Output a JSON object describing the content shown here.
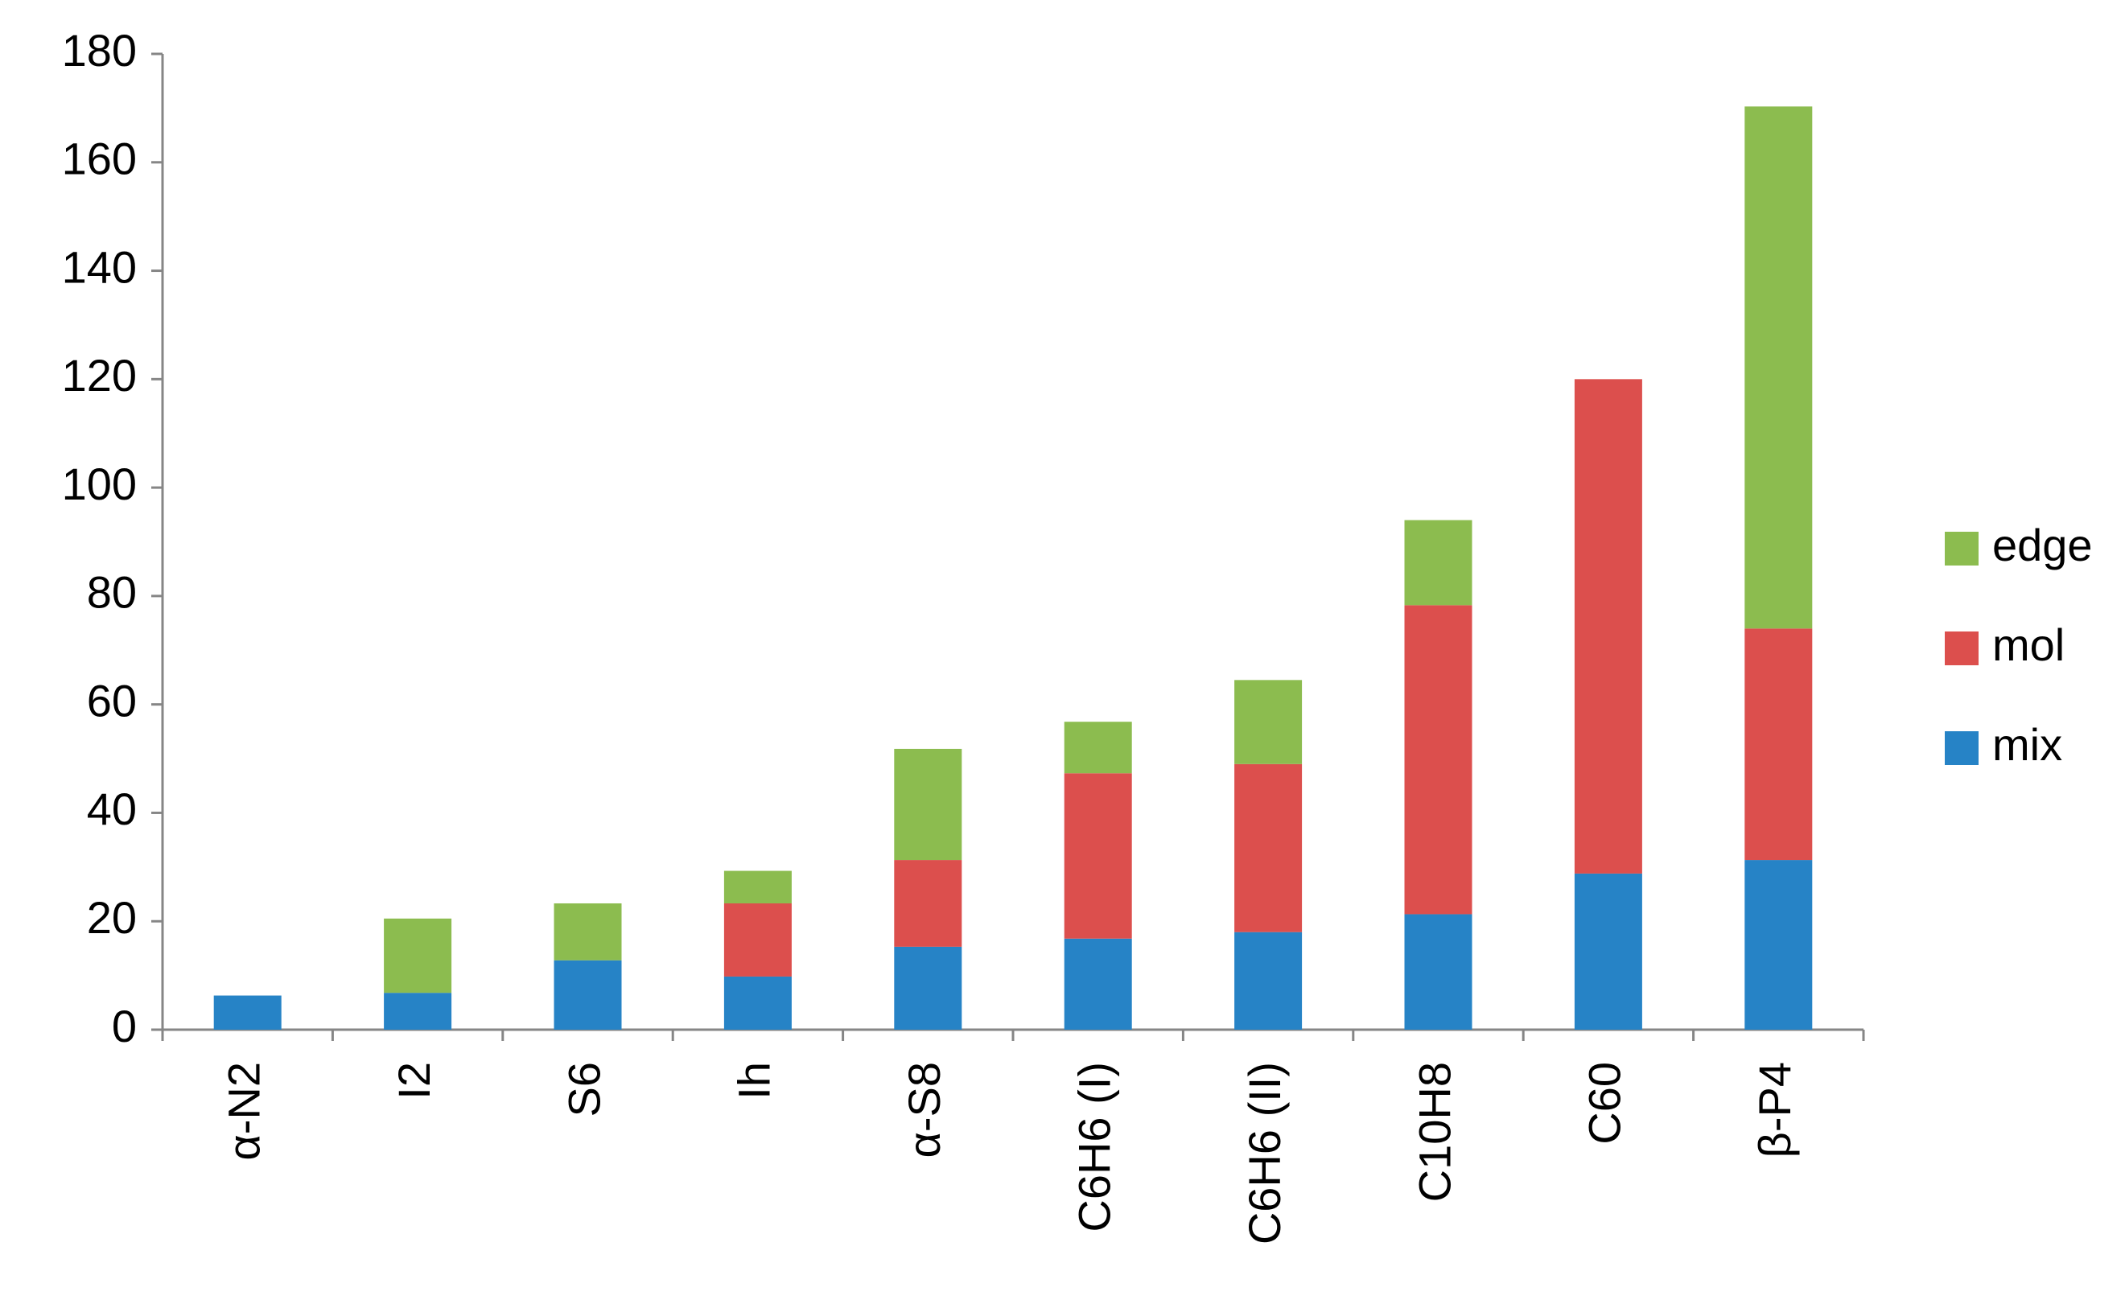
{
  "chart_data": {
    "type": "stacked-bar",
    "categories": [
      "α-N2",
      "I2",
      "S6",
      "Ih",
      "α-S8",
      "C6H6 (I)",
      "C6H6 (II)",
      "C10H8",
      "C60",
      "β-P4"
    ],
    "series": [
      {
        "name": "mix",
        "color": "#2683c6",
        "values": [
          6.3,
          6.8,
          12.8,
          9.8,
          15.3,
          16.8,
          18,
          21.3,
          28.8,
          31.3
        ]
      },
      {
        "name": "mol",
        "color": "#dc4f4d",
        "values": [
          0,
          0,
          0,
          13.5,
          16,
          30.5,
          31,
          57,
          91.2,
          42.7
        ]
      },
      {
        "name": "edge",
        "color": "#8cbc4f",
        "values": [
          0,
          13.7,
          10.5,
          6,
          20.5,
          9.5,
          15.5,
          15.7,
          0,
          96.3
        ]
      }
    ],
    "ylim": [
      0,
      180
    ],
    "yticks": [
      0,
      20,
      40,
      60,
      80,
      100,
      120,
      140,
      160,
      180
    ],
    "grid": false,
    "legend": "right"
  }
}
